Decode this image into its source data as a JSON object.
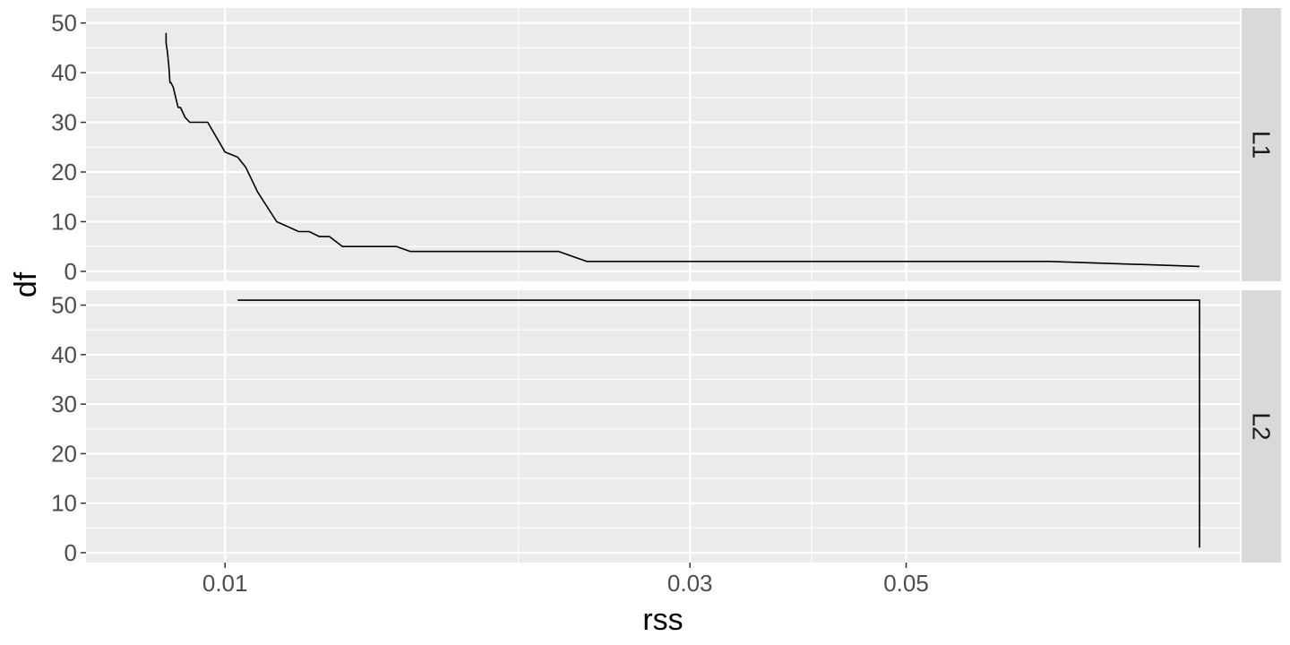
{
  "chart_data": {
    "type": "line",
    "xlabel": "rss",
    "ylabel": "df",
    "x_scale": "log10",
    "xlim": [
      0.0072,
      0.11
    ],
    "x_ticks": [
      0.01,
      0.03,
      0.05
    ],
    "x_tick_labels": [
      "0.01",
      "0.03",
      "0.05"
    ],
    "x_minor_ticks": [
      0.02,
      0.04
    ],
    "ylim": [
      -2,
      53
    ],
    "y_ticks": [
      0,
      10,
      20,
      30,
      40,
      50
    ],
    "y_tick_labels": [
      "0",
      "10",
      "20",
      "30",
      "40",
      "50"
    ],
    "grid": true,
    "legend": "none",
    "colors": {
      "panel_bg": "#ebebeb",
      "grid": "#ffffff",
      "strip_bg": "#d9d9d9",
      "line": "#000000"
    },
    "facets": [
      {
        "label": "L1",
        "series": [
          {
            "x": [
              0.0087,
              0.0087,
              0.00873,
              0.00876,
              0.00878,
              0.0088,
              0.00885,
              0.0089,
              0.00895,
              0.009,
              0.0091,
              0.0092,
              0.0096,
              0.01,
              0.0103,
              0.0105,
              0.0108,
              0.0113,
              0.0116,
              0.0119,
              0.0122,
              0.0125,
              0.0128,
              0.0132,
              0.0136,
              0.0145,
              0.015,
              0.0155,
              0.022,
              0.0235,
              0.07,
              0.1
            ],
            "y": [
              48,
              46,
              44,
              41,
              38,
              38,
              37,
              35,
              33,
              33,
              31,
              30,
              30,
              24,
              23,
              21,
              16,
              10,
              9,
              8,
              8,
              7,
              7,
              5,
              5,
              5,
              5,
              4,
              4,
              2,
              2,
              1
            ]
          }
        ]
      },
      {
        "label": "L2",
        "series": [
          {
            "x": [
              0.0103,
              0.1,
              0.1
            ],
            "y": [
              51,
              51,
              1
            ]
          }
        ]
      }
    ]
  }
}
